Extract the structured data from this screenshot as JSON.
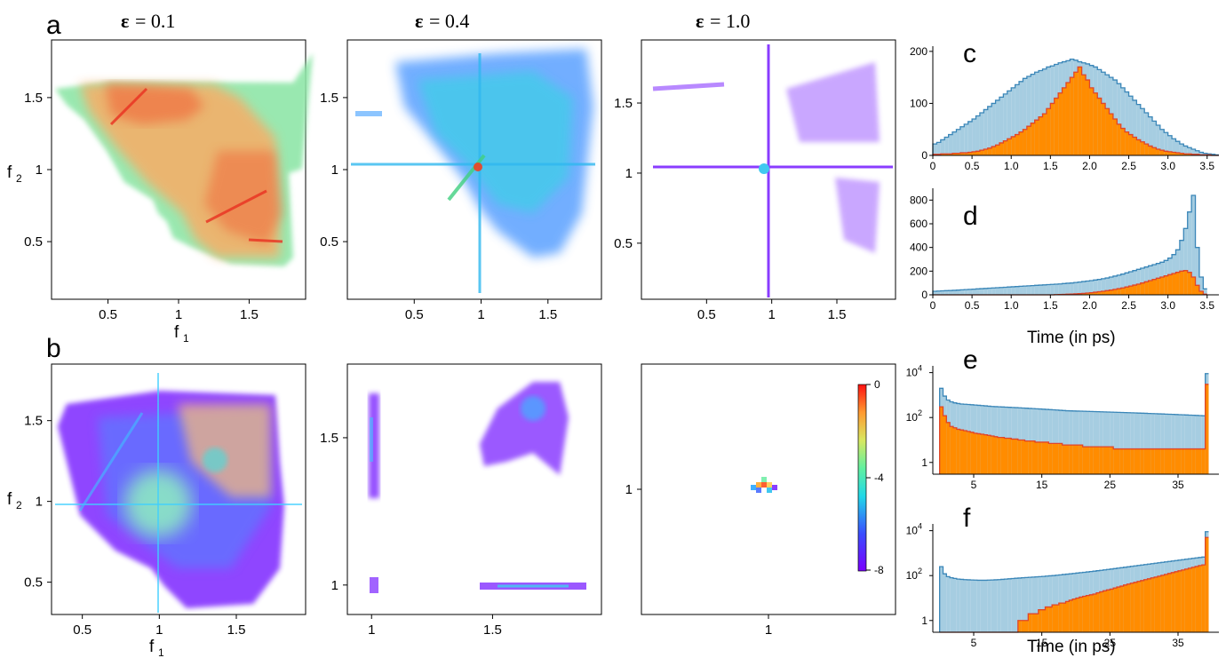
{
  "figure": {
    "panel_letters": [
      "a",
      "b",
      "c",
      "d",
      "e",
      "f"
    ],
    "eps_symbol": "ε",
    "eps_titles": [
      "= 0.1",
      "= 0.4",
      "= 1.0"
    ],
    "f1_label": "f",
    "f1_sub": "1",
    "f2_label": "f",
    "f2_sub": "2",
    "time_label": "Time (in ps)",
    "colorbar_ticks": [
      "0",
      "-4",
      "-8"
    ],
    "colors": {
      "hist_blue_fill": "#a6cde1",
      "hist_blue_line": "#3a86b8",
      "hist_orange_fill": "#ff8c00",
      "hist_orange_line": "#e0452a"
    }
  },
  "chart_data": [
    {
      "type": "heatmap",
      "id": "a1",
      "title": "ε = 0.1",
      "xlabel": "f1",
      "ylabel": "f2",
      "xlim": [
        0.1,
        1.9
      ],
      "ylim": [
        0.1,
        1.9
      ],
      "xticks": [
        "0.5",
        "1",
        "1.5"
      ],
      "yticks": [
        "0.5",
        "1",
        "1.5"
      ],
      "colormap": "rainbow"
    },
    {
      "type": "heatmap",
      "id": "a2",
      "title": "ε = 0.4",
      "xlim": [
        0.0,
        1.9
      ],
      "ylim": [
        0.1,
        1.9
      ],
      "xticks": [
        "0.5",
        "1",
        "1.5"
      ],
      "yticks": [
        "0.5",
        "1",
        "1.5"
      ],
      "colormap": "rainbow"
    },
    {
      "type": "heatmap",
      "id": "a3",
      "title": "ε = 1.0",
      "xlim": [
        0.0,
        1.95
      ],
      "ylim": [
        0.1,
        1.95
      ],
      "xticks": [
        "0.5",
        "1",
        "1.5"
      ],
      "yticks": [
        "0.5",
        "1",
        "1.5"
      ],
      "colormap": "rainbow"
    },
    {
      "type": "heatmap",
      "id": "b1",
      "xlabel": "f1",
      "ylabel": "f2",
      "xlim": [
        0.3,
        1.95
      ],
      "ylim": [
        0.3,
        1.85
      ],
      "xticks": [
        "0.5",
        "1",
        "1.5"
      ],
      "yticks": [
        "0.5",
        "1",
        "1.5"
      ],
      "colormap": "rainbow"
    },
    {
      "type": "heatmap",
      "id": "b2",
      "xlim": [
        0.9,
        1.95
      ],
      "ylim": [
        0.9,
        1.75
      ],
      "xticks": [
        "1",
        "1.5"
      ],
      "yticks": [
        "1",
        "1.5"
      ],
      "colormap": "rainbow"
    },
    {
      "type": "heatmap",
      "id": "b3",
      "xlim": [
        0.5,
        1.5
      ],
      "ylim": [
        0.5,
        1.5
      ],
      "xticks": [
        "1"
      ],
      "yticks": [
        "1"
      ],
      "colormap": "rainbow",
      "colorbar": {
        "ticks": [
          "0",
          "-4",
          "-8"
        ],
        "range": [
          -8,
          0
        ]
      }
    },
    {
      "type": "bar",
      "id": "c",
      "subtype": "histogram",
      "xlim": [
        0,
        3.65
      ],
      "ylim": [
        0,
        210
      ],
      "xticks": [
        "0",
        "0.5",
        "1.0",
        "1.5",
        "2.0",
        "2.5",
        "3.0",
        "3.5"
      ],
      "yticks": [
        "0",
        "100",
        "200"
      ],
      "bin_width": 0.05,
      "series": [
        {
          "values": [
            22,
            25,
            30,
            35,
            40,
            45,
            50,
            55,
            60,
            65,
            70,
            76,
            82,
            88,
            94,
            100,
            106,
            112,
            118,
            124,
            130,
            136,
            142,
            148,
            152,
            156,
            160,
            163,
            166,
            170,
            172,
            175,
            178,
            180,
            182,
            185,
            183,
            180,
            178,
            176,
            173,
            170,
            165,
            160,
            155,
            150,
            145,
            138,
            130,
            122,
            114,
            106,
            98,
            90,
            82,
            74,
            66,
            58,
            50,
            44,
            38,
            32,
            27,
            22,
            18,
            15,
            12,
            9,
            6,
            4,
            3,
            2,
            1
          ]
        },
        {
          "values": [
            2,
            2,
            3,
            3,
            3,
            4,
            4,
            5,
            5,
            6,
            7,
            8,
            10,
            12,
            14,
            17,
            20,
            24,
            28,
            32,
            36,
            40,
            45,
            50,
            56,
            62,
            68,
            74,
            80,
            90,
            100,
            110,
            120,
            130,
            140,
            150,
            160,
            170,
            155,
            145,
            130,
            120,
            110,
            100,
            90,
            80,
            70,
            60,
            52,
            45,
            40,
            35,
            30,
            26,
            22,
            18,
            15,
            12,
            10,
            8,
            7,
            6,
            5,
            4,
            3,
            3,
            2,
            2,
            1,
            1,
            1,
            0,
            0
          ]
        }
      ]
    },
    {
      "type": "bar",
      "id": "d",
      "subtype": "histogram",
      "xlim": [
        0,
        3.65
      ],
      "ylim": [
        0,
        900
      ],
      "xticks": [
        "0",
        "0.5",
        "1.0",
        "1.5",
        "2.0",
        "2.5",
        "3.0",
        "3.5"
      ],
      "yticks": [
        "0",
        "200",
        "400",
        "600",
        "800"
      ],
      "xlabel": "Time (in ps)",
      "bin_width": 0.05,
      "series": [
        {
          "values": [
            30,
            32,
            34,
            35,
            36,
            38,
            40,
            42,
            44,
            46,
            48,
            50,
            52,
            54,
            56,
            58,
            60,
            62,
            64,
            66,
            68,
            70,
            72,
            74,
            76,
            78,
            80,
            82,
            84,
            86,
            88,
            90,
            92,
            95,
            98,
            100,
            104,
            108,
            112,
            116,
            120,
            125,
            130,
            136,
            142,
            150,
            158,
            166,
            175,
            185,
            195,
            205,
            215,
            225,
            235,
            245,
            255,
            265,
            275,
            290,
            310,
            340,
            380,
            460,
            560,
            700,
            840,
            400,
            150,
            50
          ]
        },
        {
          "values": [
            0,
            0,
            0,
            0,
            0,
            0,
            0,
            0,
            0,
            0,
            0,
            0,
            0,
            0,
            0,
            0,
            0,
            0,
            0,
            0,
            0,
            0,
            0,
            0,
            0,
            0,
            0,
            0,
            0,
            0,
            0,
            2,
            3,
            4,
            5,
            6,
            8,
            10,
            12,
            15,
            18,
            22,
            26,
            30,
            35,
            40,
            46,
            52,
            58,
            66,
            74,
            82,
            90,
            100,
            110,
            120,
            130,
            140,
            150,
            160,
            170,
            180,
            190,
            200,
            205,
            190,
            150,
            80,
            30,
            5
          ]
        }
      ]
    },
    {
      "type": "bar",
      "id": "e",
      "subtype": "histogram",
      "yscale": "log",
      "xlim": [
        -1,
        41
      ],
      "ylim": [
        0.3,
        20000
      ],
      "xticks": [
        "5",
        "15",
        "25",
        "35"
      ],
      "yticks": [
        "1",
        "10^2",
        "10^4"
      ],
      "bin_width": 0.5,
      "series": [
        {
          "values": [
            2000,
            900,
            600,
            500,
            450,
            420,
            400,
            390,
            380,
            370,
            360,
            350,
            340,
            330,
            320,
            310,
            305,
            300,
            295,
            290,
            285,
            280,
            275,
            270,
            265,
            260,
            255,
            250,
            245,
            240,
            235,
            230,
            225,
            220,
            215,
            210,
            205,
            200,
            198,
            196,
            194,
            192,
            190,
            188,
            186,
            184,
            182,
            180,
            178,
            176,
            174,
            172,
            170,
            168,
            166,
            164,
            162,
            160,
            158,
            156,
            154,
            152,
            150,
            148,
            146,
            144,
            142,
            140,
            138,
            136,
            134,
            132,
            130,
            128,
            126,
            124,
            122,
            120,
            9000
          ]
        },
        {
          "values": [
            300,
            120,
            60,
            40,
            35,
            30,
            28,
            26,
            24,
            22,
            20,
            19,
            18,
            17,
            16,
            15,
            14,
            13,
            13,
            12,
            12,
            11,
            11,
            10,
            10,
            9,
            9,
            9,
            8,
            8,
            8,
            8,
            7,
            7,
            7,
            7,
            6,
            6,
            6,
            6,
            6,
            6,
            5,
            5,
            5,
            5,
            5,
            5,
            5,
            5,
            5,
            4,
            4,
            4,
            4,
            4,
            4,
            4,
            4,
            4,
            4,
            4,
            4,
            4,
            4,
            4,
            4,
            4,
            4,
            4,
            4,
            4,
            4,
            4,
            4,
            4,
            4,
            4,
            3000
          ]
        }
      ]
    },
    {
      "type": "bar",
      "id": "f",
      "subtype": "histogram",
      "yscale": "log",
      "xlim": [
        -1,
        41
      ],
      "ylim": [
        0.3,
        20000
      ],
      "xticks": [
        "5",
        "15",
        "25",
        "35"
      ],
      "yticks": [
        "1",
        "10^2",
        "10^4"
      ],
      "xlabel": "Time (in ps)",
      "bin_width": 0.5,
      "series": [
        {
          "values": [
            250,
            120,
            90,
            80,
            75,
            70,
            68,
            66,
            65,
            64,
            63,
            62,
            62,
            62,
            63,
            64,
            65,
            66,
            68,
            70,
            72,
            74,
            76,
            78,
            80,
            82,
            84,
            86,
            88,
            90,
            92,
            95,
            98,
            100,
            104,
            108,
            112,
            116,
            120,
            125,
            130,
            135,
            140,
            146,
            152,
            158,
            165,
            172,
            180,
            188,
            196,
            205,
            215,
            225,
            235,
            246,
            258,
            270,
            283,
            296,
            310,
            325,
            340,
            356,
            372,
            390,
            408,
            427,
            447,
            468,
            490,
            512,
            535,
            560,
            586,
            613,
            641,
            670,
            9000
          ]
        },
        {
          "values": [
            0,
            0,
            0,
            0,
            0,
            0,
            0,
            0,
            0,
            0,
            0,
            0,
            0,
            0,
            0,
            0,
            0,
            0,
            0,
            0,
            0,
            0,
            0,
            1,
            1,
            1,
            2,
            2,
            2,
            3,
            3,
            4,
            4,
            5,
            5,
            6,
            6,
            7,
            8,
            9,
            10,
            11,
            12,
            13,
            14,
            15,
            17,
            19,
            21,
            23,
            25,
            28,
            31,
            34,
            38,
            42,
            46,
            50,
            55,
            60,
            66,
            72,
            79,
            86,
            94,
            103,
            113,
            124,
            136,
            149,
            163,
            178,
            195,
            213,
            233,
            255,
            280,
            300,
            5000
          ]
        }
      ]
    }
  ]
}
